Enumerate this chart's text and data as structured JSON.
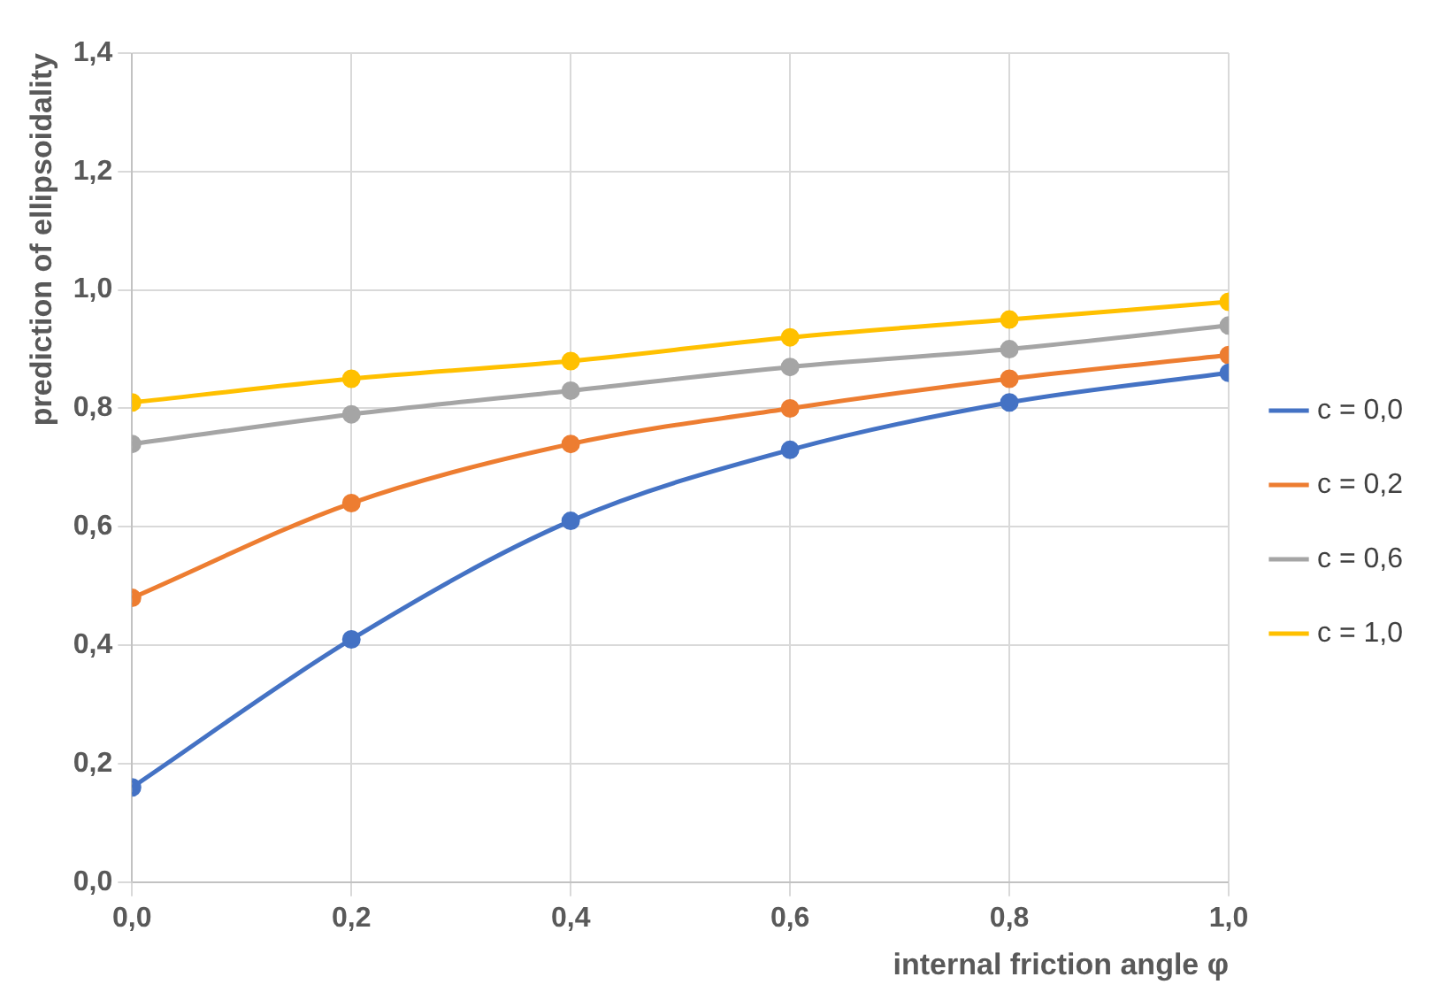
{
  "chart_data": {
    "type": "line",
    "xlabel": "internal friction angle φ",
    "ylabel": "prediction of ellipsoidality",
    "x": [
      0,
      0.2,
      0.4,
      0.6,
      0.8,
      1.0
    ],
    "series": [
      {
        "name": "c = 0,0",
        "color": "#4472c4",
        "values": [
          0.16,
          0.41,
          0.61,
          0.73,
          0.81,
          0.86
        ]
      },
      {
        "name": "c = 0,2",
        "color": "#ed7d31",
        "values": [
          0.48,
          0.64,
          0.74,
          0.8,
          0.85,
          0.89
        ]
      },
      {
        "name": "c = 0,6",
        "color": "#a5a5a5",
        "values": [
          0.74,
          0.79,
          0.83,
          0.87,
          0.9,
          0.94
        ]
      },
      {
        "name": "c = 1,0",
        "color": "#ffc000",
        "values": [
          0.81,
          0.85,
          0.88,
          0.92,
          0.95,
          0.98
        ]
      }
    ],
    "xlim": [
      0,
      1.0
    ],
    "xticks": [
      {
        "value": 0,
        "label": "0,0"
      },
      {
        "value": 0.2,
        "label": "0,2"
      },
      {
        "value": 0.4,
        "label": "0,4"
      },
      {
        "value": 0.6,
        "label": "0,6"
      },
      {
        "value": 0.8,
        "label": "0,8"
      },
      {
        "value": 1.0,
        "label": "1,0"
      }
    ],
    "ylim": [
      0,
      1.4
    ],
    "yticks": [
      {
        "value": 0,
        "label": "0,0"
      },
      {
        "value": 0.2,
        "label": "0,2"
      },
      {
        "value": 0.4,
        "label": "0,4"
      },
      {
        "value": 0.6,
        "label": "0,6"
      },
      {
        "value": 0.8,
        "label": "0,8"
      },
      {
        "value": 1.0,
        "label": "1,0"
      },
      {
        "value": 1.2,
        "label": "1,2"
      },
      {
        "value": 1.4,
        "label": "1,4"
      }
    ],
    "grid": true,
    "legend": "right",
    "marker": "circle",
    "line_style": "solid"
  }
}
